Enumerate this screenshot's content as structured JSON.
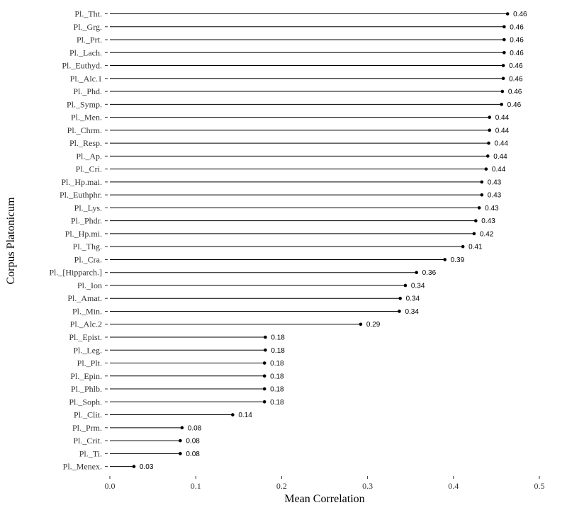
{
  "chart_data": {
    "type": "lollipop",
    "xlabel": "Mean Correlation",
    "ylabel": "Corpus Platonicum",
    "xlim": [
      0,
      0.5
    ],
    "x_ticks": [
      "0.0",
      "0.1",
      "0.2",
      "0.3",
      "0.4",
      "0.5"
    ],
    "grid": false,
    "categories": [
      "Pl._Tht.",
      "Pl._Grg.",
      "Pl._Prt.",
      "Pl._Lach.",
      "Pl._Euthyd.",
      "Pl._Alc.1",
      "Pl._Phd.",
      "Pl._Symp.",
      "Pl._Men.",
      "Pl._Chrm.",
      "Pl._Resp.",
      "Pl._Ap.",
      "Pl._Cri.",
      "Pl._Hp.mai.",
      "Pl._Euthphr.",
      "Pl._Lys.",
      "Pl._Phdr.",
      "Pl._Hp.mi.",
      "Pl._Thg.",
      "Pl._Cra.",
      "Pl._[Hipparch.]",
      "Pl._Ion",
      "Pl._Amat.",
      "Pl._Min.",
      "Pl._Alc.2",
      "Pl._Epist.",
      "Pl._Leg.",
      "Pl._Plt.",
      "Pl._Epin.",
      "Pl._Phlb.",
      "Pl._Soph.",
      "Pl._Clit.",
      "Pl._Prm.",
      "Pl._Crit.",
      "Pl._Ti.",
      "Pl._Menex."
    ],
    "values": [
      0.463,
      0.459,
      0.459,
      0.459,
      0.458,
      0.458,
      0.457,
      0.456,
      0.442,
      0.442,
      0.441,
      0.44,
      0.438,
      0.433,
      0.433,
      0.43,
      0.426,
      0.424,
      0.411,
      0.39,
      0.357,
      0.344,
      0.338,
      0.337,
      0.292,
      0.181,
      0.181,
      0.18,
      0.18,
      0.18,
      0.18,
      0.143,
      0.084,
      0.082,
      0.082,
      0.028
    ],
    "labels": [
      "0.46",
      "0.46",
      "0.46",
      "0.46",
      "0.46",
      "0.46",
      "0.46",
      "0.46",
      "0.44",
      "0.44",
      "0.44",
      "0.44",
      "0.44",
      "0.43",
      "0.43",
      "0.43",
      "0.43",
      "0.42",
      "0.41",
      "0.39",
      "0.36",
      "0.34",
      "0.34",
      "0.34",
      "0.29",
      "0.18",
      "0.18",
      "0.18",
      "0.18",
      "0.18",
      "0.18",
      "0.14",
      "0.08",
      "0.08",
      "0.08",
      "0.03"
    ]
  }
}
